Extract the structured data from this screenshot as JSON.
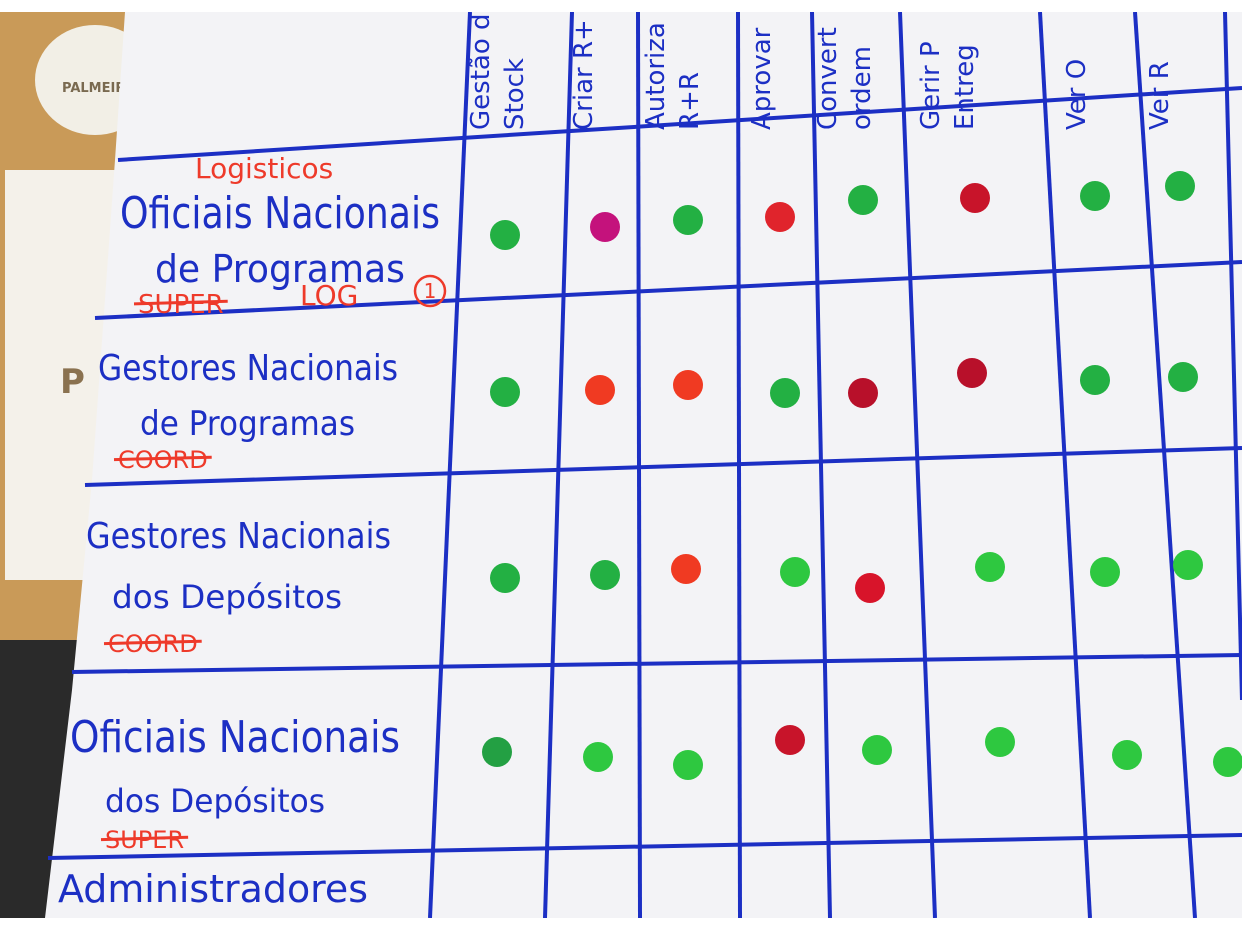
{
  "background": {
    "sign": "PALMEIR",
    "poster": "P"
  },
  "headers": [
    [
      "Gestão d",
      "Stock"
    ],
    [
      "Criar R+"
    ],
    [
      "Autoriza",
      "R+R"
    ],
    [
      "Aprovar"
    ],
    [
      "Convert",
      "ordem"
    ],
    [
      "Gerir P",
      "Entreg"
    ],
    [
      "Ver O"
    ],
    [
      "Ver R"
    ]
  ],
  "rows": [
    {
      "label": [
        "Oficiais Nacionais",
        "de Programas"
      ],
      "notes": [
        {
          "text": "Logisticos"
        },
        {
          "text": "SUPER",
          "struck": true
        },
        {
          "text": "LOG"
        },
        {
          "text": "1",
          "circled": true
        }
      ],
      "dots": [
        "#23b043",
        "#c4127c",
        "#23b043",
        "#e0242c",
        "#23b043",
        "#c8142a",
        "#23b043",
        "#23b043",
        null
      ]
    },
    {
      "label": [
        "Gestores Nacionais",
        "de Programas"
      ],
      "notes": [
        {
          "text": "COORD",
          "struck": true
        }
      ],
      "dots": [
        "#23b043",
        "#f03a22",
        "#f03a22",
        "#23b043",
        "#b8102a",
        "#b8102a",
        "#23b043",
        "#23b043",
        null
      ]
    },
    {
      "label": [
        "Gestores Nacionais",
        "dos Depósitos"
      ],
      "notes": [
        {
          "text": "COORD",
          "struck": true
        }
      ],
      "dots": [
        "#23b043",
        "#23b043",
        "#f03a22",
        "#2ec840",
        "#d8142a",
        "#2ec840",
        "#2ec840",
        "#2ec840",
        null
      ]
    },
    {
      "label": [
        "Oficiais Nacionais",
        "dos Depósitos"
      ],
      "notes": [
        {
          "text": "SUPER",
          "struck": true
        }
      ],
      "dots": [
        "#23a043",
        "#2ec840",
        "#2ec840",
        "#c8142a",
        "#2ec840",
        "#2ec840",
        "#2ec840",
        "#2ec840"
      ]
    },
    {
      "label": [
        "Administradores"
      ],
      "notes": [],
      "dots": []
    }
  ]
}
